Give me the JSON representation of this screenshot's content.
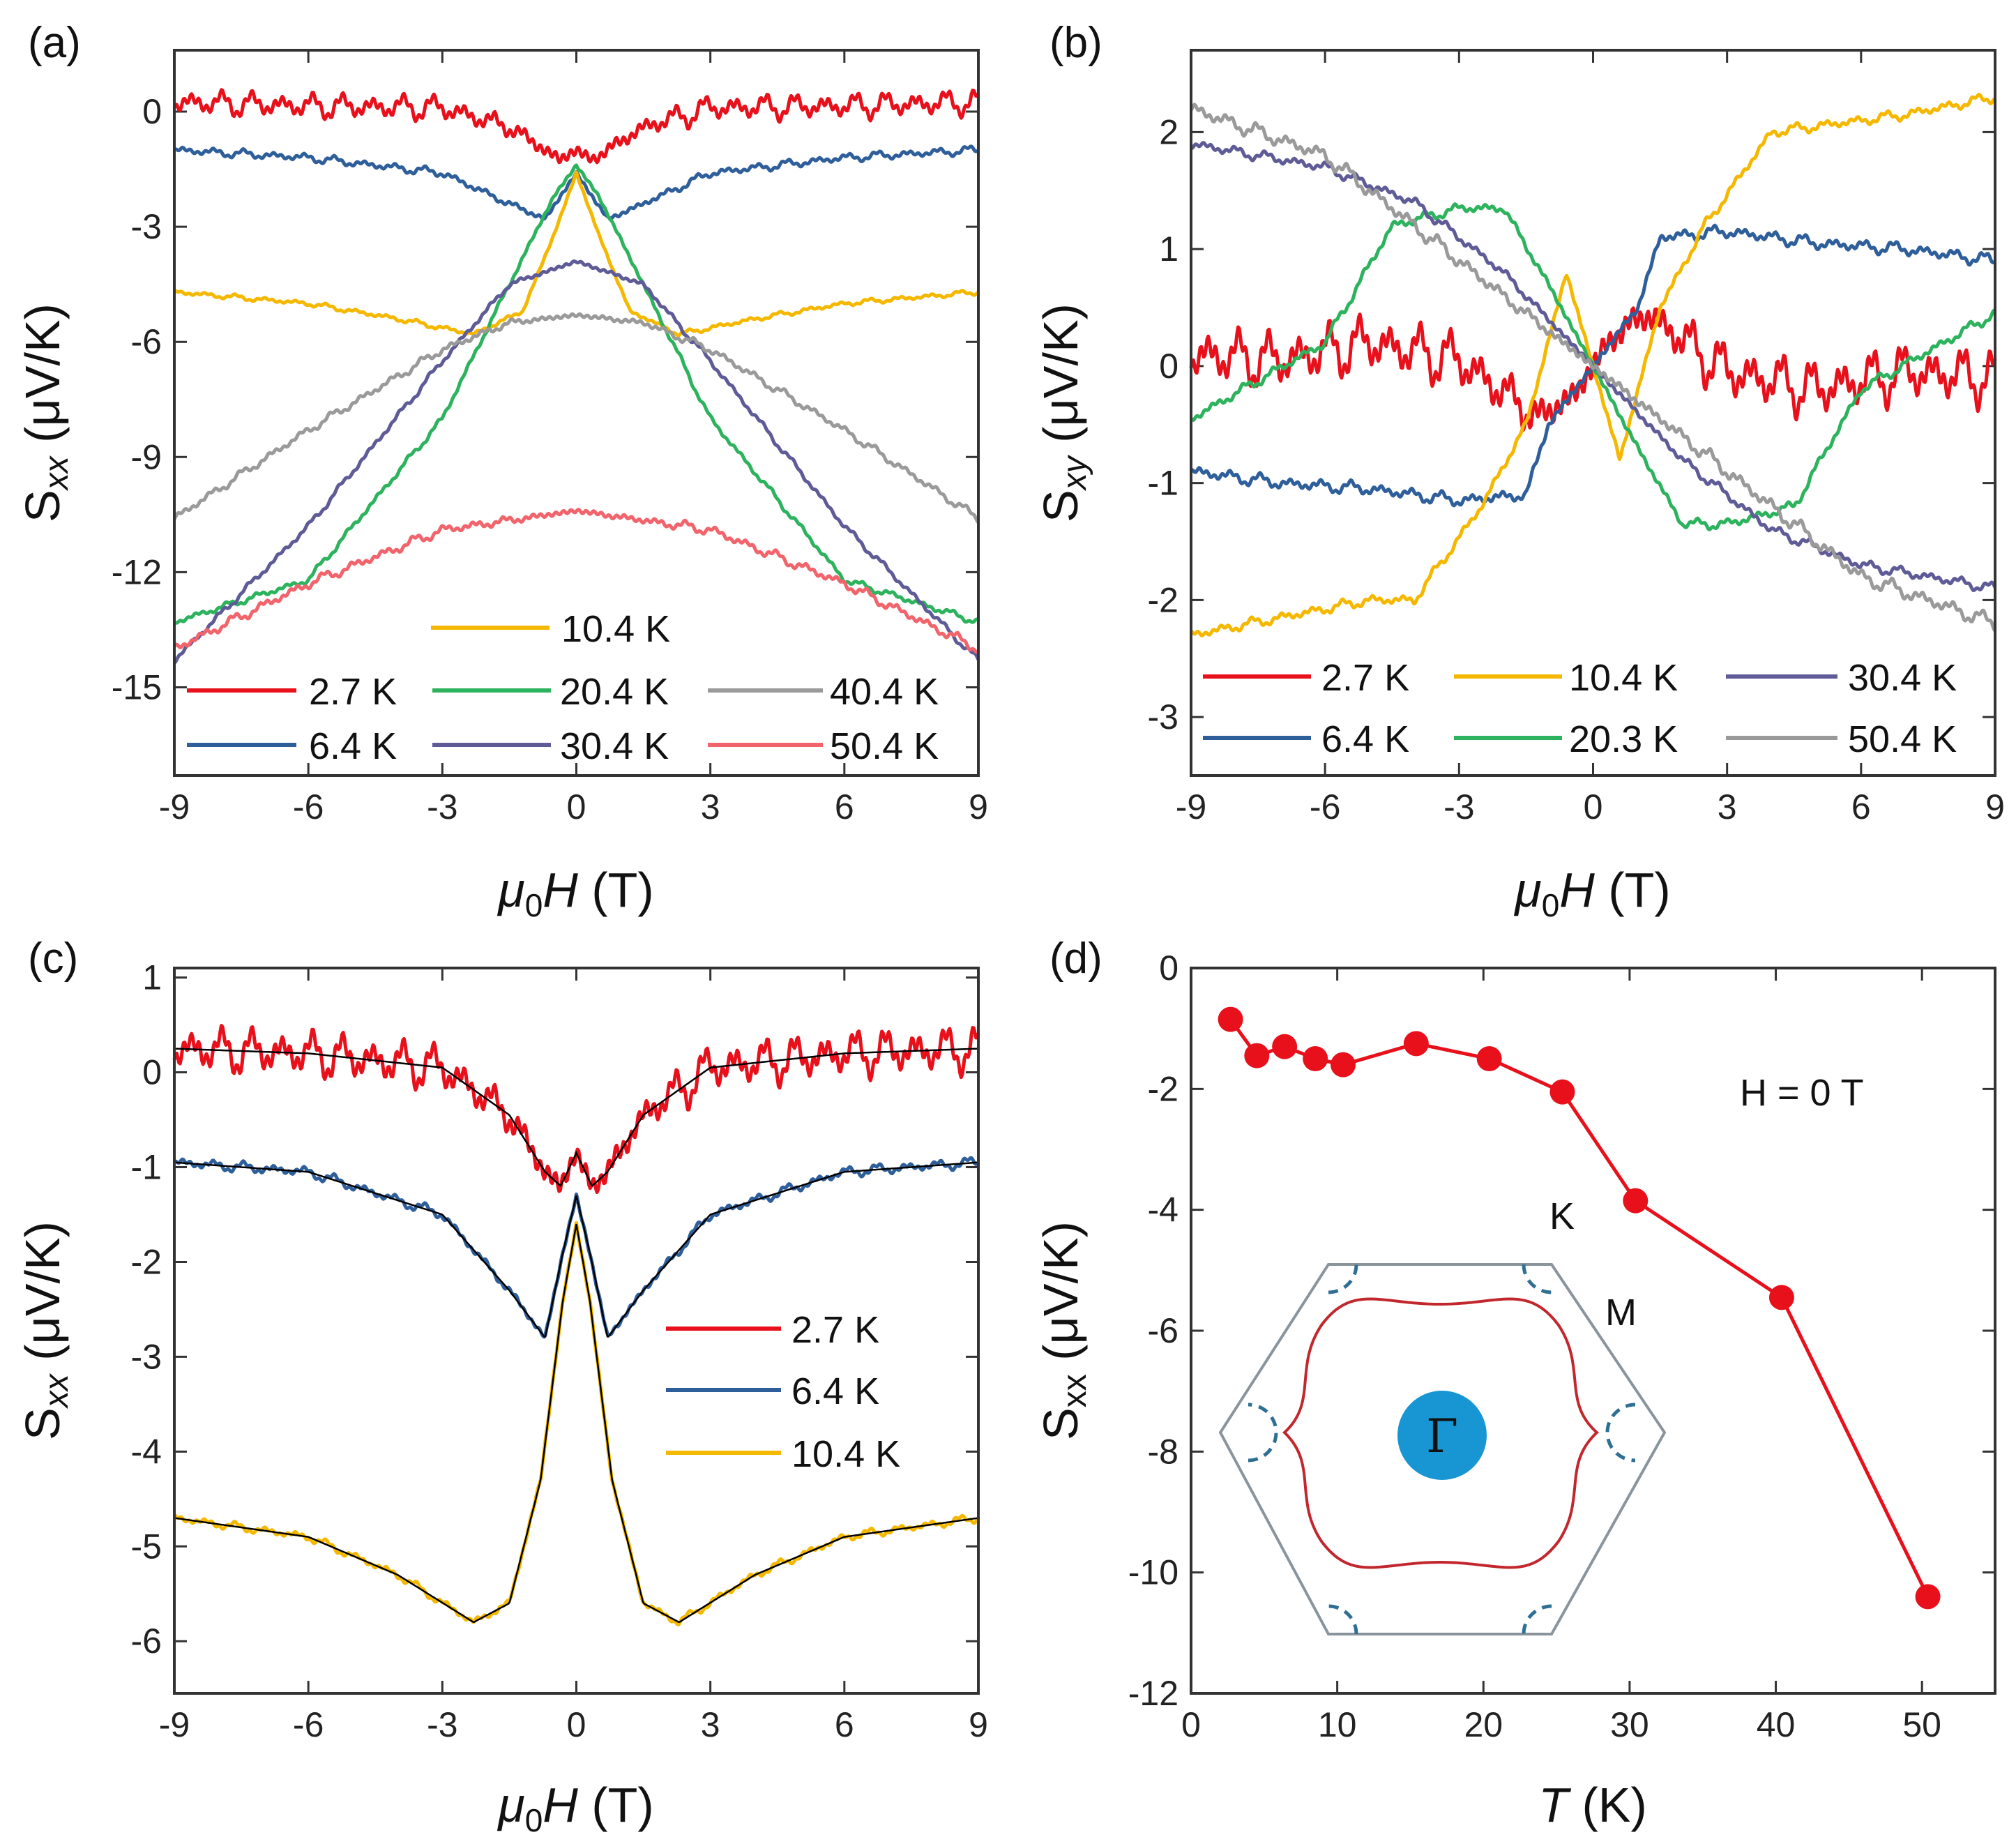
{
  "chart_data": [
    {
      "id": "a",
      "panel_label": "(a)",
      "type": "line",
      "xlabel": {
        "sym": "μ",
        "sub": "0",
        "sym2": "H",
        "unit": " (T)"
      },
      "ylabel": {
        "sym": "S",
        "sub": "xx",
        "unit": " (μV/K)"
      },
      "xlim": [
        -9,
        9
      ],
      "ylim": [
        -17.3,
        1.6
      ],
      "xticks": [
        -9,
        -6,
        -3,
        0,
        3,
        6,
        9
      ],
      "yticks": [
        0,
        -3,
        -6,
        -9,
        -12,
        -15
      ],
      "legend": [
        {
          "label": "10.4 K",
          "color": "#f5b800"
        },
        {
          "label": "2.7 K",
          "color": "#e8101b"
        },
        {
          "label": "20.4 K",
          "color": "#2db35d"
        },
        {
          "label": "40.4 K",
          "color": "#9a9a9a"
        },
        {
          "label": "6.4 K",
          "color": "#2f5f9a"
        },
        {
          "label": "30.4 K",
          "color": "#5e5b97"
        },
        {
          "label": "50.4 K",
          "color": "#f2646c"
        }
      ],
      "series": [
        {
          "name": "2.7 K",
          "color": "#e8101b",
          "x": [
            -9,
            -6,
            -3,
            -1.5,
            -0.7,
            -0.35,
            0,
            0.35,
            0.7,
            1.5,
            3,
            6,
            9
          ],
          "y": [
            0.25,
            0.15,
            0.1,
            -0.4,
            -1.0,
            -1.25,
            -1.0,
            -1.25,
            -1.0,
            -0.4,
            0.1,
            0.15,
            0.25
          ],
          "osc": 0.3
        },
        {
          "name": "6.4 K",
          "color": "#2f5f9a",
          "x": [
            -9,
            -6,
            -3,
            -1.5,
            -0.7,
            0,
            0.7,
            1.5,
            3,
            6,
            9
          ],
          "y": [
            -1.0,
            -1.2,
            -1.6,
            -2.4,
            -2.8,
            -1.6,
            -2.8,
            -2.4,
            -1.6,
            -1.2,
            -1.0
          ],
          "osc": 0.1
        },
        {
          "name": "10.4 K",
          "color": "#f5b800",
          "x": [
            -9,
            -6,
            -4,
            -2.3,
            -1.2,
            -0.5,
            0,
            0.5,
            1.2,
            2.3,
            4,
            6,
            9
          ],
          "y": [
            -4.7,
            -5.0,
            -5.4,
            -5.8,
            -5.2,
            -3.2,
            -1.6,
            -3.2,
            -5.2,
            -5.8,
            -5.4,
            -5.0,
            -4.7
          ],
          "osc": 0.06
        },
        {
          "name": "20.4 K",
          "color": "#2db35d",
          "x": [
            -9,
            -6,
            -3,
            -1.5,
            -0.5,
            0,
            0.5,
            1.5,
            3,
            6,
            9
          ],
          "y": [
            -13.3,
            -12.2,
            -8.0,
            -4.5,
            -2.2,
            -1.4,
            -2.2,
            -4.5,
            -8.0,
            -12.2,
            -13.3
          ],
          "osc": 0.08
        },
        {
          "name": "30.4 K",
          "color": "#5e5b97",
          "x": [
            -9,
            -6,
            -3,
            -1.5,
            0,
            1.5,
            3,
            6,
            9
          ],
          "y": [
            -14.3,
            -10.8,
            -6.5,
            -4.5,
            -3.9,
            -4.5,
            -6.5,
            -10.8,
            -14.3
          ],
          "osc": 0.08
        },
        {
          "name": "40.4 K",
          "color": "#9a9a9a",
          "x": [
            -9,
            -6,
            -3,
            -1.5,
            0,
            1.5,
            3,
            6,
            9
          ],
          "y": [
            -10.6,
            -8.3,
            -6.2,
            -5.5,
            -5.3,
            -5.5,
            -6.2,
            -8.3,
            -10.6
          ],
          "osc": 0.1
        },
        {
          "name": "50.4 K",
          "color": "#f2646c",
          "x": [
            -9,
            -6,
            -3,
            0,
            3,
            6,
            9
          ],
          "y": [
            -14.0,
            -12.3,
            -10.9,
            -10.4,
            -10.9,
            -12.3,
            -14.0
          ],
          "osc": 0.12
        }
      ]
    },
    {
      "id": "b",
      "panel_label": "(b)",
      "type": "line",
      "xlabel": {
        "sym": "μ",
        "sub": "0",
        "sym2": "H",
        "unit": " (T)"
      },
      "ylabel": {
        "sym": "S",
        "sub": "xy",
        "unit": " (μV/K)"
      },
      "xlim": [
        -9,
        9
      ],
      "ylim": [
        -3.5,
        2.7
      ],
      "xticks": [
        -9,
        -6,
        -3,
        0,
        3,
        6,
        9
      ],
      "yticks": [
        2,
        1,
        0,
        -1,
        -2,
        -3
      ],
      "legend": [
        {
          "label": "2.7 K",
          "color": "#e8101b"
        },
        {
          "label": "10.4 K",
          "color": "#f5b800"
        },
        {
          "label": "30.4 K",
          "color": "#5e5b97"
        },
        {
          "label": "6.4 K",
          "color": "#2f5f9a"
        },
        {
          "label": "20.3 K",
          "color": "#2db35d"
        },
        {
          "label": "50.4 K",
          "color": "#9a9a9a"
        }
      ],
      "series": [
        {
          "name": "2.7 K",
          "color": "#e8101b",
          "x": [
            -9,
            -7,
            -5,
            -3,
            -1.2,
            -0.3,
            0,
            0.3,
            1.2,
            3,
            5,
            7,
            9
          ],
          "y": [
            0.1,
            0.05,
            0.2,
            0.05,
            -0.45,
            -0.2,
            0,
            0.2,
            0.45,
            -0.05,
            -0.2,
            -0.05,
            -0.1
          ],
          "osc": 0.22
        },
        {
          "name": "6.4 K",
          "color": "#2f5f9a",
          "x": [
            -9,
            -7,
            -5,
            -3,
            -1.5,
            -1,
            0,
            1,
            1.5,
            3,
            5,
            7,
            9
          ],
          "y": [
            -0.9,
            -1.0,
            -1.05,
            -1.15,
            -1.1,
            -0.5,
            0,
            0.5,
            1.1,
            1.15,
            1.05,
            1.0,
            0.9
          ],
          "osc": 0.05
        },
        {
          "name": "10.4 K",
          "color": "#f5b800",
          "x": [
            -9,
            -7,
            -5,
            -4,
            -2.5,
            -1.5,
            -0.8,
            -0.6,
            0,
            0.6,
            0.8,
            1.5,
            2.5,
            4,
            5,
            7,
            9
          ],
          "y": [
            -2.3,
            -2.15,
            -2.0,
            -2.0,
            -1.2,
            -0.5,
            0.5,
            0.8,
            0,
            -0.8,
            -0.5,
            0.5,
            1.2,
            2.0,
            2.05,
            2.15,
            2.3
          ],
          "osc": 0.04
        },
        {
          "name": "20.3 K",
          "color": "#2db35d",
          "x": [
            -9,
            -6,
            -4.5,
            -3,
            -2,
            -1,
            0,
            1,
            2,
            3,
            4.5,
            6,
            9
          ],
          "y": [
            -0.45,
            0.2,
            1.2,
            1.35,
            1.35,
            0.7,
            0,
            -0.7,
            -1.35,
            -1.35,
            -1.2,
            -0.2,
            0.45
          ],
          "osc": 0.04
        },
        {
          "name": "30.4 K",
          "color": "#5e5b97",
          "x": [
            -9,
            -6,
            -4,
            -2,
            0,
            2,
            4,
            6,
            9
          ],
          "y": [
            1.9,
            1.7,
            1.4,
            0.8,
            0,
            -0.8,
            -1.4,
            -1.7,
            -1.9
          ],
          "osc": 0.04
        },
        {
          "name": "50.4 K",
          "color": "#9a9a9a",
          "x": [
            -9,
            -6,
            -4,
            -2,
            0,
            2,
            4,
            6,
            9
          ],
          "y": [
            2.2,
            1.8,
            1.2,
            0.6,
            0,
            -0.6,
            -1.2,
            -1.8,
            -2.2
          ],
          "osc": 0.06
        }
      ]
    },
    {
      "id": "c",
      "panel_label": "(c)",
      "type": "line",
      "xlabel": {
        "sym": "μ",
        "sub": "0",
        "sym2": "H",
        "unit": " (T)"
      },
      "ylabel": {
        "sym": "S",
        "sub": "xx",
        "unit": " (μV/K)"
      },
      "xlim": [
        -9,
        9
      ],
      "ylim": [
        -6.55,
        1.1
      ],
      "xticks": [
        -9,
        -6,
        -3,
        0,
        3,
        6,
        9
      ],
      "yticks": [
        1,
        0,
        -1,
        -2,
        -3,
        -4,
        -5,
        -6
      ],
      "legend": [
        {
          "label": "2.7 K",
          "color": "#e8101b"
        },
        {
          "label": "6.4 K",
          "color": "#2f5f9a"
        },
        {
          "label": "10.4 K",
          "color": "#f5b800"
        }
      ],
      "series": [
        {
          "name": "2.7 K",
          "color": "#e8101b",
          "x": [
            -9,
            -6,
            -3,
            -1.5,
            -0.7,
            -0.35,
            0,
            0.35,
            0.7,
            1.5,
            3,
            6,
            9
          ],
          "y": [
            0.25,
            0.2,
            0.05,
            -0.45,
            -1.05,
            -1.2,
            -0.85,
            -1.2,
            -1.05,
            -0.45,
            0.05,
            0.2,
            0.25
          ],
          "osc": 0.22
        },
        {
          "name": "6.4 K",
          "color": "#2f5f9a",
          "x": [
            -9,
            -6,
            -3,
            -1.5,
            -0.7,
            -0.3,
            0,
            0.3,
            0.7,
            1.5,
            3,
            6,
            9
          ],
          "y": [
            -0.95,
            -1.05,
            -1.5,
            -2.3,
            -2.8,
            -1.9,
            -1.3,
            -1.9,
            -2.8,
            -2.3,
            -1.5,
            -1.05,
            -0.95
          ],
          "osc": 0.05
        },
        {
          "name": "10.4 K",
          "color": "#f5b800",
          "x": [
            -9,
            -6,
            -4,
            -2.3,
            -1.5,
            -0.8,
            -0.3,
            0,
            0.3,
            0.8,
            1.5,
            2.3,
            4,
            6,
            9
          ],
          "y": [
            -4.7,
            -4.9,
            -5.3,
            -5.8,
            -5.6,
            -4.3,
            -2.4,
            -1.6,
            -2.4,
            -4.3,
            -5.6,
            -5.8,
            -5.3,
            -4.9,
            -4.7
          ],
          "osc": 0.04
        }
      ],
      "fit_color": "#000000"
    },
    {
      "id": "d",
      "panel_label": "(d)",
      "type": "scatter",
      "xlabel": {
        "sym": "T",
        "sub": "",
        "sym2": "",
        "unit": " (K)"
      },
      "ylabel": {
        "sym": "S",
        "sub": "xx",
        "unit": " (μV/K)"
      },
      "xlim": [
        0,
        55
      ],
      "ylim": [
        -12,
        0
      ],
      "xticks": [
        0,
        10,
        20,
        30,
        40,
        50
      ],
      "yticks": [
        0,
        -2,
        -4,
        -6,
        -8,
        -10,
        -12
      ],
      "color": "#e8101b",
      "x": [
        2.7,
        4.5,
        6.4,
        8.5,
        10.4,
        15.4,
        20.4,
        25.4,
        30.4,
        40.4,
        50.4
      ],
      "y": [
        -0.85,
        -1.45,
        -1.3,
        -1.5,
        -1.6,
        -1.25,
        -1.5,
        -2.05,
        -3.85,
        -5.45,
        -10.4
      ],
      "annotation": "H = 0 T",
      "inset_labels": {
        "K": "K",
        "M": "M",
        "Gamma": "Γ"
      }
    }
  ]
}
